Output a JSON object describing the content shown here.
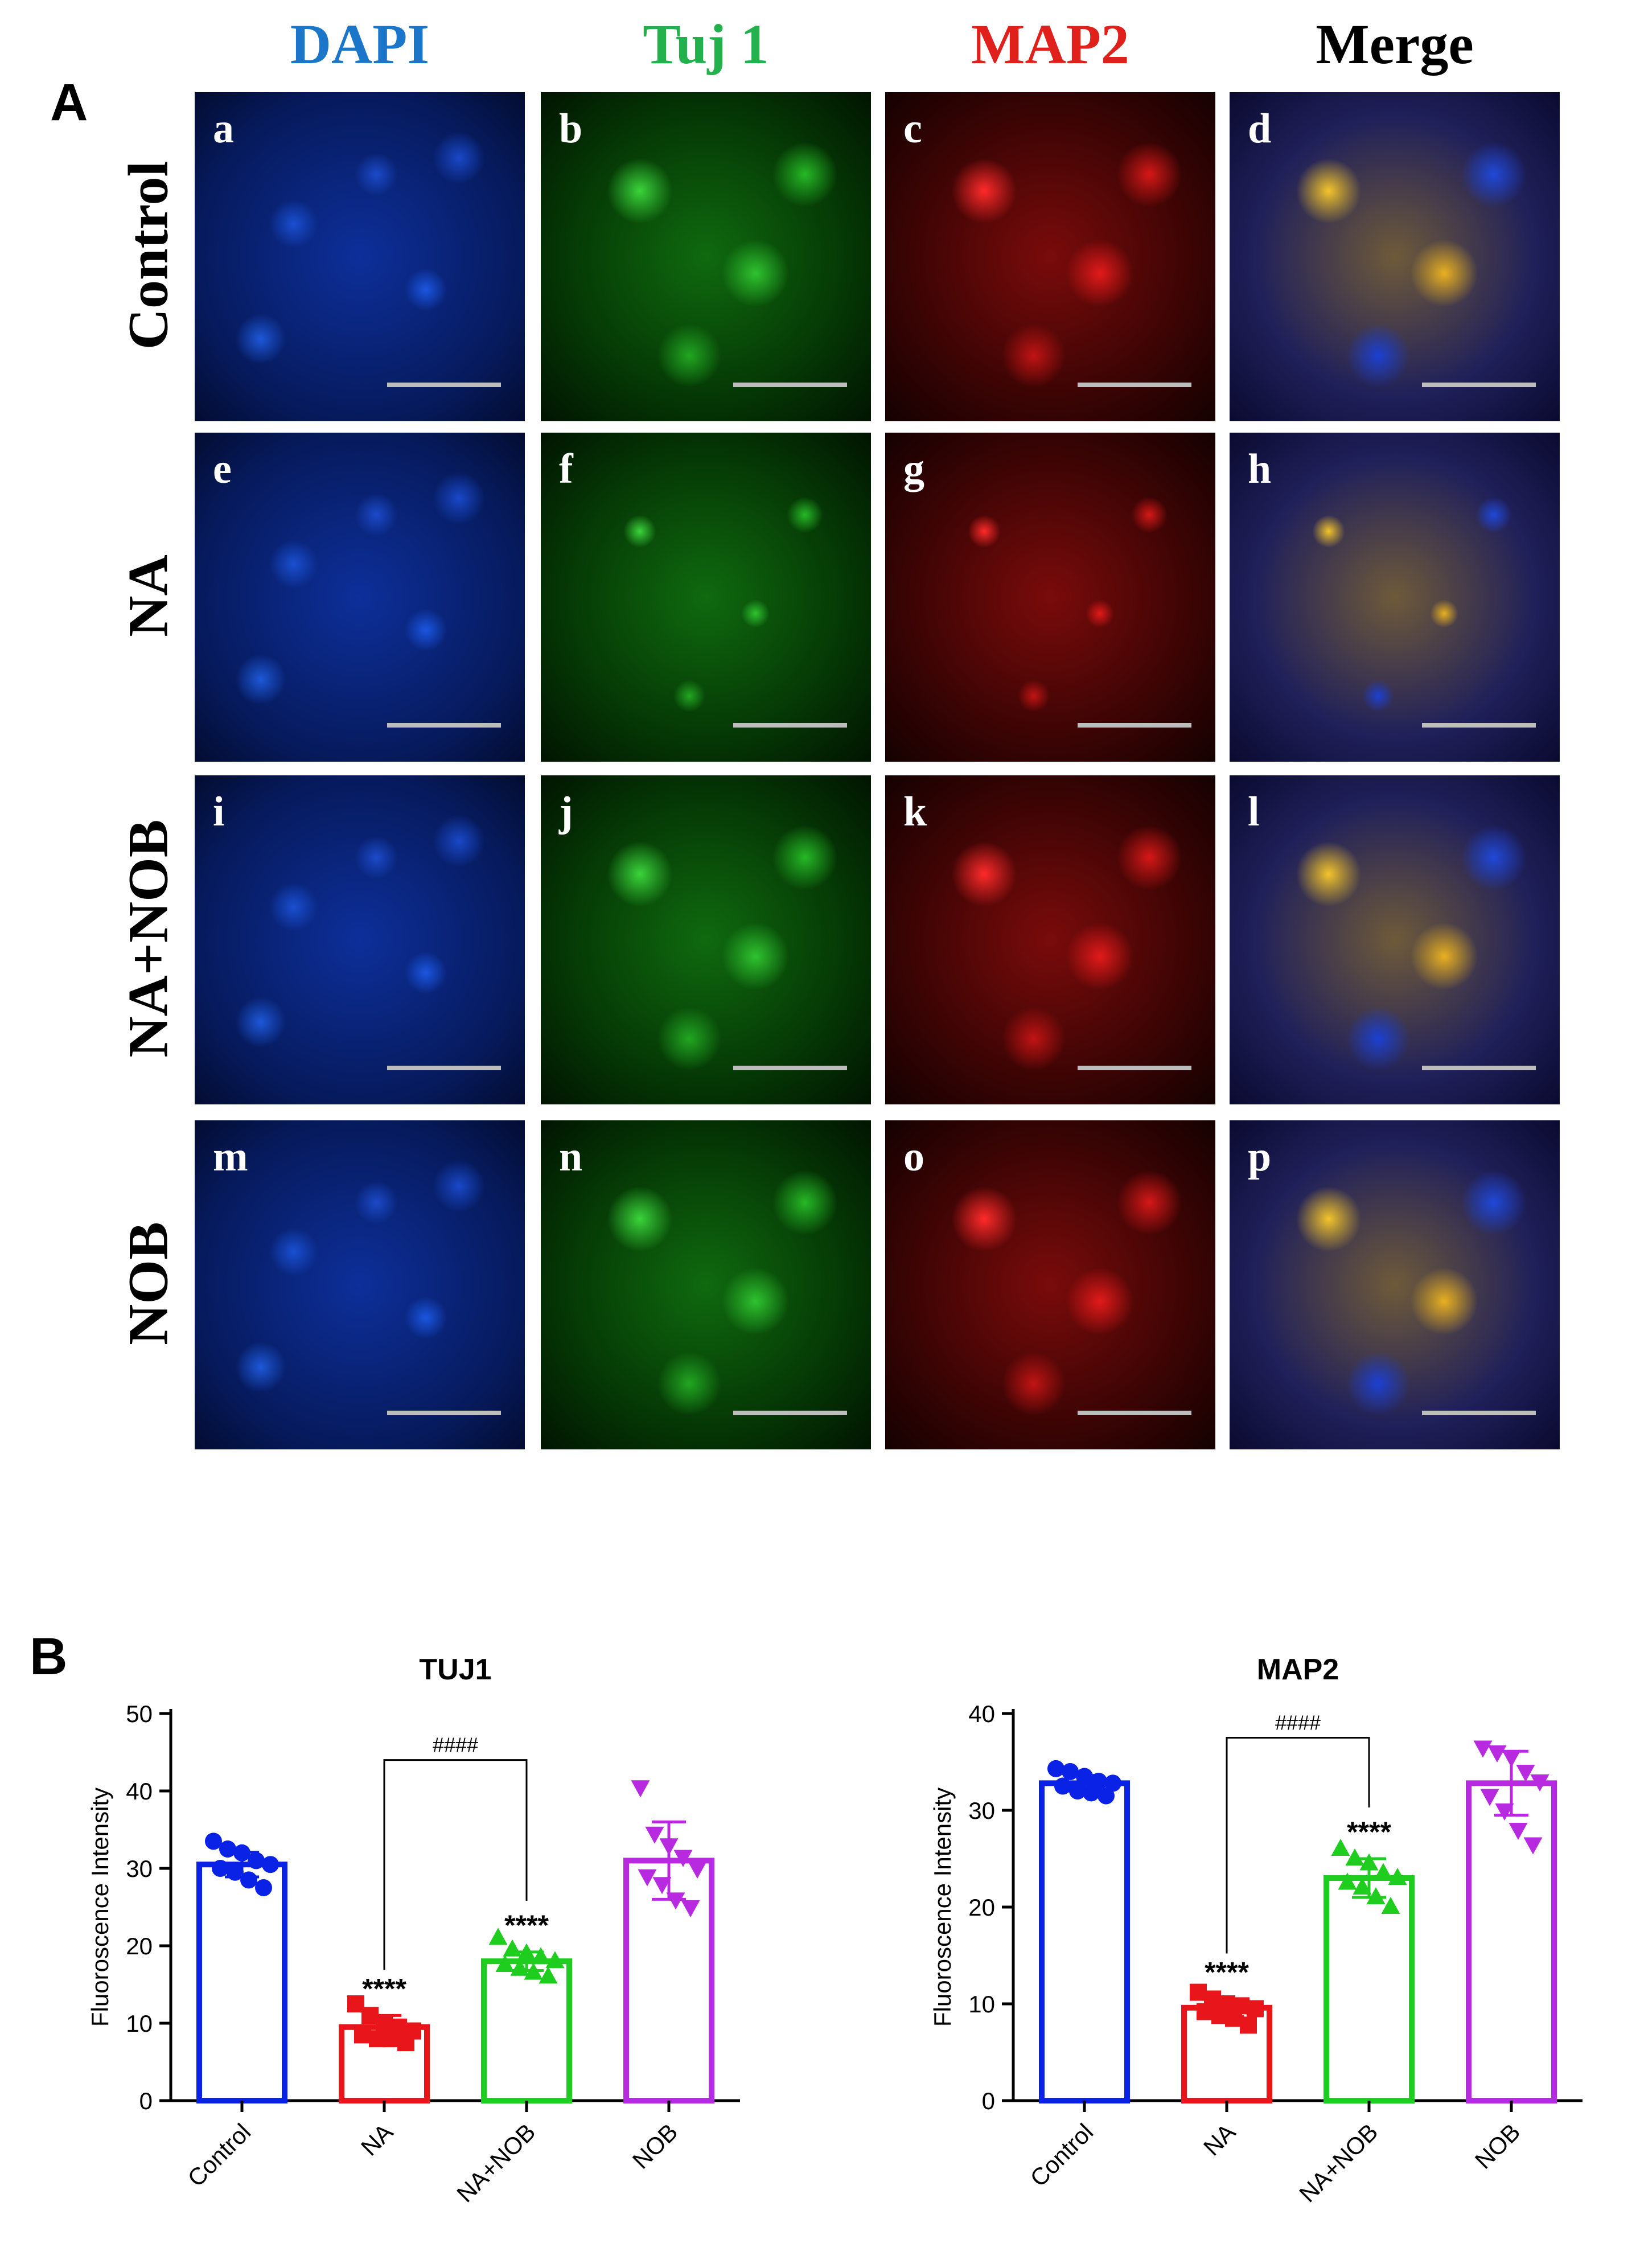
{
  "panel_a": {
    "label": "A",
    "columns": [
      {
        "label": "DAPI",
        "color": "#1b75c9"
      },
      {
        "label": "Tuj 1",
        "color": "#22b14c"
      },
      {
        "label": "MAP2",
        "color": "#e0201b"
      },
      {
        "label": "Merge",
        "color": "#000000"
      }
    ],
    "rows": [
      {
        "label": "Control",
        "tiles": [
          "a",
          "b",
          "c",
          "d"
        ]
      },
      {
        "label": "NA",
        "tiles": [
          "e",
          "f",
          "g",
          "h"
        ]
      },
      {
        "label": "NA+NOB",
        "tiles": [
          "i",
          "j",
          "k",
          "l"
        ]
      },
      {
        "label": "NOB",
        "tiles": [
          "m",
          "n",
          "o",
          "p"
        ]
      }
    ]
  },
  "panel_b": {
    "label": "B"
  },
  "chart_data": [
    {
      "type": "bar",
      "title": "TUJ1",
      "ylabel": "Fluoroscence Intensity",
      "xlabel": "",
      "categories": [
        "Control",
        "NA",
        "NA+NOB",
        "NOB"
      ],
      "values": [
        30.5,
        9.5,
        18.0,
        31.0
      ],
      "errors": [
        1.6,
        1.5,
        1.2,
        5.0
      ],
      "colors": [
        "#0a22e6",
        "#e8151b",
        "#1fcd1f",
        "#b82ae0"
      ],
      "markers": [
        "circle",
        "square",
        "triangle-up",
        "triangle-down"
      ],
      "points": [
        [
          33.5,
          32.5,
          32.0,
          31.0,
          30.5,
          30.0,
          29.5,
          28.5,
          27.5
        ],
        [
          12.5,
          11.0,
          10.0,
          9.5,
          9.0,
          8.5,
          8.0,
          8.0,
          7.5
        ],
        [
          21.0,
          19.5,
          19.0,
          18.5,
          18.0,
          17.5,
          17.0,
          16.5,
          16.0
        ],
        [
          40.5,
          34.5,
          33.0,
          31.5,
          30.0,
          29.0,
          28.0,
          26.0,
          25.0
        ]
      ],
      "ylim": [
        0,
        50
      ],
      "yticks": [
        0,
        10,
        20,
        30,
        40,
        50
      ],
      "significance": [
        "",
        "****",
        "****",
        ""
      ],
      "bracket": {
        "from": "NA",
        "to": "NA+NOB",
        "label": "####",
        "y": 44
      }
    },
    {
      "type": "bar",
      "title": "MAP2",
      "ylabel": "Fluoroscence Intensity",
      "xlabel": "",
      "categories": [
        "Control",
        "NA",
        "NA+NOB",
        "NOB"
      ],
      "values": [
        32.8,
        9.6,
        23.0,
        32.8
      ],
      "errors": [
        0.8,
        0.9,
        2.0,
        3.3
      ],
      "colors": [
        "#0a22e6",
        "#e8151b",
        "#1fcd1f",
        "#b82ae0"
      ],
      "markers": [
        "circle",
        "square",
        "triangle-up",
        "triangle-down"
      ],
      "points": [
        [
          34.3,
          34.0,
          33.5,
          33.0,
          32.8,
          32.5,
          32.0,
          31.8,
          31.5
        ],
        [
          11.2,
          10.5,
          10.0,
          9.8,
          9.5,
          9.2,
          8.8,
          8.5,
          7.8
        ],
        [
          26.0,
          25.0,
          24.5,
          23.5,
          23.0,
          22.5,
          22.0,
          21.0,
          20.0
        ],
        [
          36.5,
          36.0,
          35.5,
          34.0,
          33.0,
          31.5,
          30.0,
          28.0,
          26.5
        ]
      ],
      "ylim": [
        0,
        40
      ],
      "yticks": [
        0,
        10,
        20,
        30,
        40
      ],
      "significance": [
        "",
        "****",
        "****",
        ""
      ],
      "bracket": {
        "from": "NA",
        "to": "NA+NOB",
        "label": "####",
        "y": 37.5
      }
    }
  ]
}
